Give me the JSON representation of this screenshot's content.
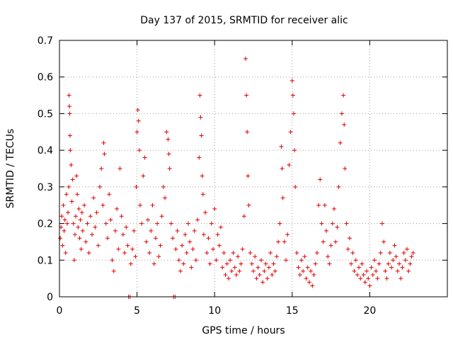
{
  "chart_data": {
    "type": "scatter",
    "title": "Day 137 of 2015, SRMTID for receiver alic",
    "xlabel": "GPS time / hours",
    "ylabel": "SRMTID / TECUs",
    "xlim": [
      0,
      25
    ],
    "ylim": [
      0,
      0.7
    ],
    "x_ticks": [
      0,
      5,
      10,
      15,
      20
    ],
    "y_ticks": [
      0,
      0.1,
      0.2,
      0.3,
      0.4,
      0.5,
      0.6,
      0.7
    ],
    "x_tick_labels": [
      "0",
      "5",
      "10",
      "15",
      "20"
    ],
    "y_tick_labels": [
      "0",
      "0.1",
      "0.2",
      "0.3",
      "0.4",
      "0.5",
      "0.6",
      "0.7"
    ],
    "grid": true,
    "marker": "+",
    "color": "#e00000",
    "series": [
      {
        "name": "SRMTID",
        "points": [
          [
            0.05,
            0.16
          ],
          [
            0.1,
            0.19
          ],
          [
            0.15,
            0.22
          ],
          [
            0.2,
            0.14
          ],
          [
            0.25,
            0.25
          ],
          [
            0.3,
            0.18
          ],
          [
            0.35,
            0.21
          ],
          [
            0.4,
            0.12
          ],
          [
            0.45,
            0.28
          ],
          [
            0.5,
            0.2
          ],
          [
            0.55,
            0.23
          ],
          [
            0.6,
            0.3
          ],
          [
            0.62,
            0.55
          ],
          [
            0.64,
            0.52
          ],
          [
            0.66,
            0.5
          ],
          [
            0.68,
            0.44
          ],
          [
            0.7,
            0.4
          ],
          [
            0.75,
            0.36
          ],
          [
            0.8,
            0.26
          ],
          [
            0.85,
            0.32
          ],
          [
            0.9,
            0.2
          ],
          [
            0.95,
            0.1
          ],
          [
            1.0,
            0.17
          ],
          [
            1.05,
            0.22
          ],
          [
            1.1,
            0.33
          ],
          [
            1.15,
            0.28
          ],
          [
            1.2,
            0.19
          ],
          [
            1.25,
            0.24
          ],
          [
            1.3,
            0.16
          ],
          [
            1.35,
            0.21
          ],
          [
            1.4,
            0.13
          ],
          [
            1.45,
            0.23
          ],
          [
            1.5,
            0.18
          ],
          [
            1.6,
            0.25
          ],
          [
            1.7,
            0.15
          ],
          [
            1.8,
            0.2
          ],
          [
            1.9,
            0.12
          ],
          [
            2.0,
            0.22
          ],
          [
            2.1,
            0.17
          ],
          [
            2.2,
            0.27
          ],
          [
            2.3,
            0.19
          ],
          [
            2.4,
            0.23
          ],
          [
            2.5,
            0.14
          ],
          [
            2.6,
            0.3
          ],
          [
            2.7,
            0.35
          ],
          [
            2.8,
            0.25
          ],
          [
            2.85,
            0.42
          ],
          [
            2.9,
            0.39
          ],
          [
            3.0,
            0.2
          ],
          [
            3.1,
            0.16
          ],
          [
            3.2,
            0.28
          ],
          [
            3.3,
            0.21
          ],
          [
            3.4,
            0.1
          ],
          [
            3.5,
            0.07
          ],
          [
            3.6,
            0.18
          ],
          [
            3.7,
            0.24
          ],
          [
            3.8,
            0.13
          ],
          [
            3.9,
            0.35
          ],
          [
            4.0,
            0.22
          ],
          [
            4.1,
            0.17
          ],
          [
            4.2,
            0.12
          ],
          [
            4.3,
            0.19
          ],
          [
            4.4,
            0.14
          ],
          [
            4.45,
            0.0
          ],
          [
            4.55,
            0.0
          ],
          [
            4.6,
            0.09
          ],
          [
            4.7,
            0.13
          ],
          [
            4.8,
            0.18
          ],
          [
            4.9,
            0.11
          ],
          [
            4.95,
            0.3
          ],
          [
            5.0,
            0.45
          ],
          [
            5.05,
            0.51
          ],
          [
            5.1,
            0.48
          ],
          [
            5.15,
            0.4
          ],
          [
            5.2,
            0.25
          ],
          [
            5.3,
            0.2
          ],
          [
            5.4,
            0.33
          ],
          [
            5.5,
            0.38
          ],
          [
            5.6,
            0.15
          ],
          [
            5.7,
            0.21
          ],
          [
            5.8,
            0.12
          ],
          [
            5.9,
            0.18
          ],
          [
            6.0,
            0.25
          ],
          [
            6.1,
            0.09
          ],
          [
            6.2,
            0.16
          ],
          [
            6.3,
            0.2
          ],
          [
            6.4,
            0.11
          ],
          [
            6.5,
            0.14
          ],
          [
            6.6,
            0.22
          ],
          [
            6.7,
            0.3
          ],
          [
            6.8,
            0.27
          ],
          [
            6.9,
            0.45
          ],
          [
            7.0,
            0.43
          ],
          [
            7.05,
            0.39
          ],
          [
            7.1,
            0.35
          ],
          [
            7.2,
            0.2
          ],
          [
            7.3,
            0.16
          ],
          [
            7.35,
            0.0
          ],
          [
            7.45,
            0.0
          ],
          [
            7.5,
            0.13
          ],
          [
            7.6,
            0.18
          ],
          [
            7.7,
            0.1
          ],
          [
            7.8,
            0.07
          ],
          [
            7.9,
            0.14
          ],
          [
            8.0,
            0.09
          ],
          [
            8.1,
            0.17
          ],
          [
            8.2,
            0.12
          ],
          [
            8.3,
            0.2
          ],
          [
            8.4,
            0.15
          ],
          [
            8.5,
            0.08
          ],
          [
            8.6,
            0.13
          ],
          [
            8.7,
            0.18
          ],
          [
            8.8,
            0.1
          ],
          [
            8.9,
            0.21
          ],
          [
            9.0,
            0.38
          ],
          [
            9.05,
            0.55
          ],
          [
            9.1,
            0.49
          ],
          [
            9.15,
            0.44
          ],
          [
            9.2,
            0.33
          ],
          [
            9.25,
            0.28
          ],
          [
            9.3,
            0.17
          ],
          [
            9.4,
            0.23
          ],
          [
            9.5,
            0.12
          ],
          [
            9.6,
            0.16
          ],
          [
            9.7,
            0.09
          ],
          [
            9.8,
            0.2
          ],
          [
            9.9,
            0.13
          ],
          [
            10.0,
            0.24
          ],
          [
            10.1,
            0.1
          ],
          [
            10.2,
            0.17
          ],
          [
            10.3,
            0.14
          ],
          [
            10.4,
            0.19
          ],
          [
            10.5,
            0.08
          ],
          [
            10.6,
            0.12
          ],
          [
            10.7,
            0.06
          ],
          [
            10.8,
            0.09
          ],
          [
            10.9,
            0.05
          ],
          [
            11.0,
            0.1
          ],
          [
            11.1,
            0.07
          ],
          [
            11.2,
            0.12
          ],
          [
            11.3,
            0.08
          ],
          [
            11.4,
            0.06
          ],
          [
            11.5,
            0.11
          ],
          [
            11.6,
            0.07
          ],
          [
            11.7,
            0.09
          ],
          [
            11.8,
            0.13
          ],
          [
            11.9,
            0.22
          ],
          [
            12.0,
            0.65
          ],
          [
            12.05,
            0.55
          ],
          [
            12.1,
            0.45
          ],
          [
            12.15,
            0.33
          ],
          [
            12.2,
            0.25
          ],
          [
            12.3,
            0.12
          ],
          [
            12.4,
            0.09
          ],
          [
            12.5,
            0.07
          ],
          [
            12.6,
            0.11
          ],
          [
            12.7,
            0.05
          ],
          [
            12.8,
            0.08
          ],
          [
            12.9,
            0.06
          ],
          [
            13.0,
            0.1
          ],
          [
            13.1,
            0.04
          ],
          [
            13.2,
            0.07
          ],
          [
            13.3,
            0.09
          ],
          [
            13.4,
            0.05
          ],
          [
            13.5,
            0.08
          ],
          [
            13.6,
            0.12
          ],
          [
            13.7,
            0.06
          ],
          [
            13.8,
            0.09
          ],
          [
            13.9,
            0.07
          ],
          [
            14.0,
            0.11
          ],
          [
            14.1,
            0.15
          ],
          [
            14.2,
            0.2
          ],
          [
            14.3,
            0.41
          ],
          [
            14.35,
            0.35
          ],
          [
            14.4,
            0.27
          ],
          [
            14.5,
            0.15
          ],
          [
            14.6,
            0.1
          ],
          [
            14.7,
            0.17
          ],
          [
            14.8,
            0.36
          ],
          [
            14.9,
            0.45
          ],
          [
            15.0,
            0.59
          ],
          [
            15.05,
            0.55
          ],
          [
            15.1,
            0.5
          ],
          [
            15.15,
            0.4
          ],
          [
            15.2,
            0.3
          ],
          [
            15.3,
            0.12
          ],
          [
            15.4,
            0.08
          ],
          [
            15.5,
            0.06
          ],
          [
            15.6,
            0.1
          ],
          [
            15.7,
            0.07
          ],
          [
            15.8,
            0.11
          ],
          [
            15.9,
            0.05
          ],
          [
            16.0,
            0.08
          ],
          [
            16.1,
            0.04
          ],
          [
            16.2,
            0.07
          ],
          [
            16.3,
            0.03
          ],
          [
            16.4,
            0.06
          ],
          [
            16.5,
            0.09
          ],
          [
            16.6,
            0.12
          ],
          [
            16.7,
            0.25
          ],
          [
            16.8,
            0.32
          ],
          [
            16.9,
            0.2
          ],
          [
            17.0,
            0.15
          ],
          [
            17.1,
            0.25
          ],
          [
            17.2,
            0.18
          ],
          [
            17.3,
            0.11
          ],
          [
            17.4,
            0.09
          ],
          [
            17.5,
            0.14
          ],
          [
            17.6,
            0.2
          ],
          [
            17.7,
            0.24
          ],
          [
            17.8,
            0.15
          ],
          [
            17.9,
            0.19
          ],
          [
            18.0,
            0.3
          ],
          [
            18.1,
            0.42
          ],
          [
            18.2,
            0.5
          ],
          [
            18.3,
            0.55
          ],
          [
            18.35,
            0.47
          ],
          [
            18.4,
            0.35
          ],
          [
            18.5,
            0.2
          ],
          [
            18.6,
            0.13
          ],
          [
            18.7,
            0.16
          ],
          [
            18.8,
            0.09
          ],
          [
            18.9,
            0.12
          ],
          [
            19.0,
            0.07
          ],
          [
            19.1,
            0.1
          ],
          [
            19.2,
            0.06
          ],
          [
            19.3,
            0.08
          ],
          [
            19.4,
            0.05
          ],
          [
            19.5,
            0.09
          ],
          [
            19.6,
            0.06
          ],
          [
            19.7,
            0.04
          ],
          [
            19.8,
            0.07
          ],
          [
            19.9,
            0.05
          ],
          [
            20.0,
            0.03
          ],
          [
            20.1,
            0.08
          ],
          [
            20.2,
            0.06
          ],
          [
            20.3,
            0.1
          ],
          [
            20.4,
            0.07
          ],
          [
            20.5,
            0.05
          ],
          [
            20.6,
            0.09
          ],
          [
            20.7,
            0.12
          ],
          [
            20.8,
            0.2
          ],
          [
            20.9,
            0.15
          ],
          [
            21.0,
            0.07
          ],
          [
            21.1,
            0.05
          ],
          [
            21.2,
            0.09
          ],
          [
            21.3,
            0.12
          ],
          [
            21.4,
            0.08
          ],
          [
            21.5,
            0.1
          ],
          [
            21.6,
            0.14
          ],
          [
            21.7,
            0.11
          ],
          [
            21.8,
            0.07
          ],
          [
            21.9,
            0.09
          ],
          [
            22.0,
            0.05
          ],
          [
            22.1,
            0.08
          ],
          [
            22.2,
            0.12
          ],
          [
            22.3,
            0.1
          ],
          [
            22.4,
            0.13
          ],
          [
            22.5,
            0.07
          ],
          [
            22.6,
            0.09
          ],
          [
            22.7,
            0.11
          ],
          [
            22.8,
            0.12
          ]
        ]
      }
    ]
  }
}
